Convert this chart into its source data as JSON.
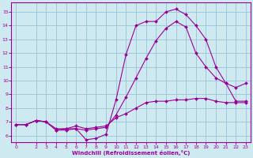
{
  "background_color": "#cfe9f0",
  "line_color": "#990099",
  "grid_color": "#9ec8d8",
  "xlabel": "Windchill (Refroidissement éolien,°C)",
  "xlabel_color": "#990099",
  "xlim": [
    -0.5,
    23.5
  ],
  "ylim": [
    5.5,
    15.7
  ],
  "yticks": [
    6,
    7,
    8,
    9,
    10,
    11,
    12,
    13,
    14,
    15
  ],
  "xticks": [
    0,
    2,
    3,
    4,
    5,
    6,
    7,
    8,
    9,
    10,
    11,
    12,
    13,
    14,
    15,
    16,
    17,
    18,
    19,
    20,
    21,
    22,
    23
  ],
  "curve1_x": [
    0,
    1,
    2,
    3,
    4,
    5,
    6,
    7,
    8,
    9,
    10,
    11,
    12,
    13,
    14,
    15,
    16,
    17,
    18,
    19,
    20,
    21,
    22,
    23
  ],
  "curve1_y": [
    6.8,
    6.8,
    7.1,
    7.0,
    6.4,
    6.4,
    6.5,
    5.7,
    5.8,
    6.1,
    8.6,
    11.9,
    14.0,
    14.3,
    14.3,
    15.0,
    15.2,
    14.8,
    14.0,
    13.0,
    11.0,
    9.8,
    9.5,
    9.8
  ],
  "curve2_x": [
    0,
    1,
    2,
    3,
    4,
    5,
    6,
    7,
    8,
    9,
    10,
    11,
    12,
    13,
    14,
    15,
    16,
    17,
    18,
    19,
    20,
    21,
    22,
    23
  ],
  "curve2_y": [
    6.8,
    6.8,
    7.1,
    7.0,
    6.5,
    6.5,
    6.7,
    6.5,
    6.6,
    6.7,
    7.3,
    7.6,
    8.0,
    8.4,
    8.5,
    8.5,
    8.6,
    8.6,
    8.7,
    8.7,
    8.5,
    8.4,
    8.4,
    8.4
  ],
  "curve3_x": [
    0,
    1,
    2,
    3,
    4,
    5,
    6,
    7,
    8,
    9,
    10,
    11,
    12,
    13,
    14,
    15,
    16,
    17,
    18,
    19,
    20,
    21,
    22,
    23
  ],
  "curve3_y": [
    6.8,
    6.8,
    7.1,
    7.0,
    6.4,
    6.5,
    6.5,
    6.4,
    6.5,
    6.6,
    7.5,
    8.8,
    10.2,
    11.6,
    12.9,
    13.8,
    14.3,
    13.9,
    12.0,
    11.0,
    10.2,
    9.8,
    8.5,
    8.5
  ]
}
